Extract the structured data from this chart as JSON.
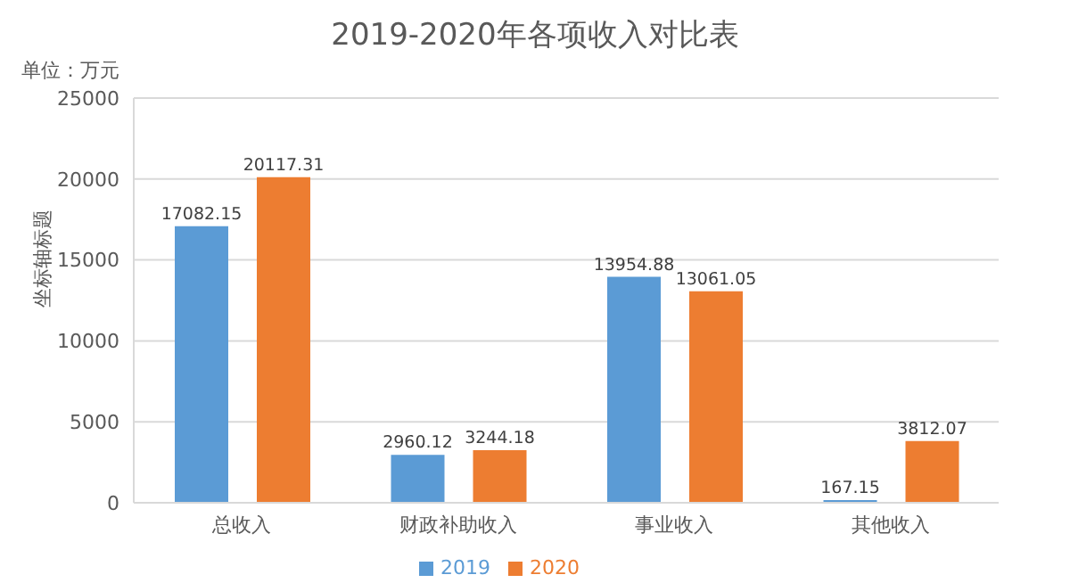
{
  "chart_data": {
    "type": "bar",
    "title": "2019-2020年各项收入对比表",
    "ylabel": "坐标轴标题",
    "annotations": [
      "单位：万元"
    ],
    "categories": [
      "总收入",
      "财政补助收入",
      "事业收入",
      "其他收入"
    ],
    "series": [
      {
        "name": "2019",
        "color": "#5b9bd5",
        "values": [
          17082.15,
          2960.12,
          13954.88,
          167.15
        ]
      },
      {
        "name": "2020",
        "color": "#ed7d31",
        "values": [
          20117.31,
          3244.18,
          13061.05,
          3812.07
        ]
      }
    ],
    "ylim": [
      0,
      25000
    ],
    "yticks": [
      0,
      5000,
      10000,
      15000,
      20000,
      25000
    ],
    "grid": "y",
    "legend": "bottom",
    "data_labels": true
  }
}
